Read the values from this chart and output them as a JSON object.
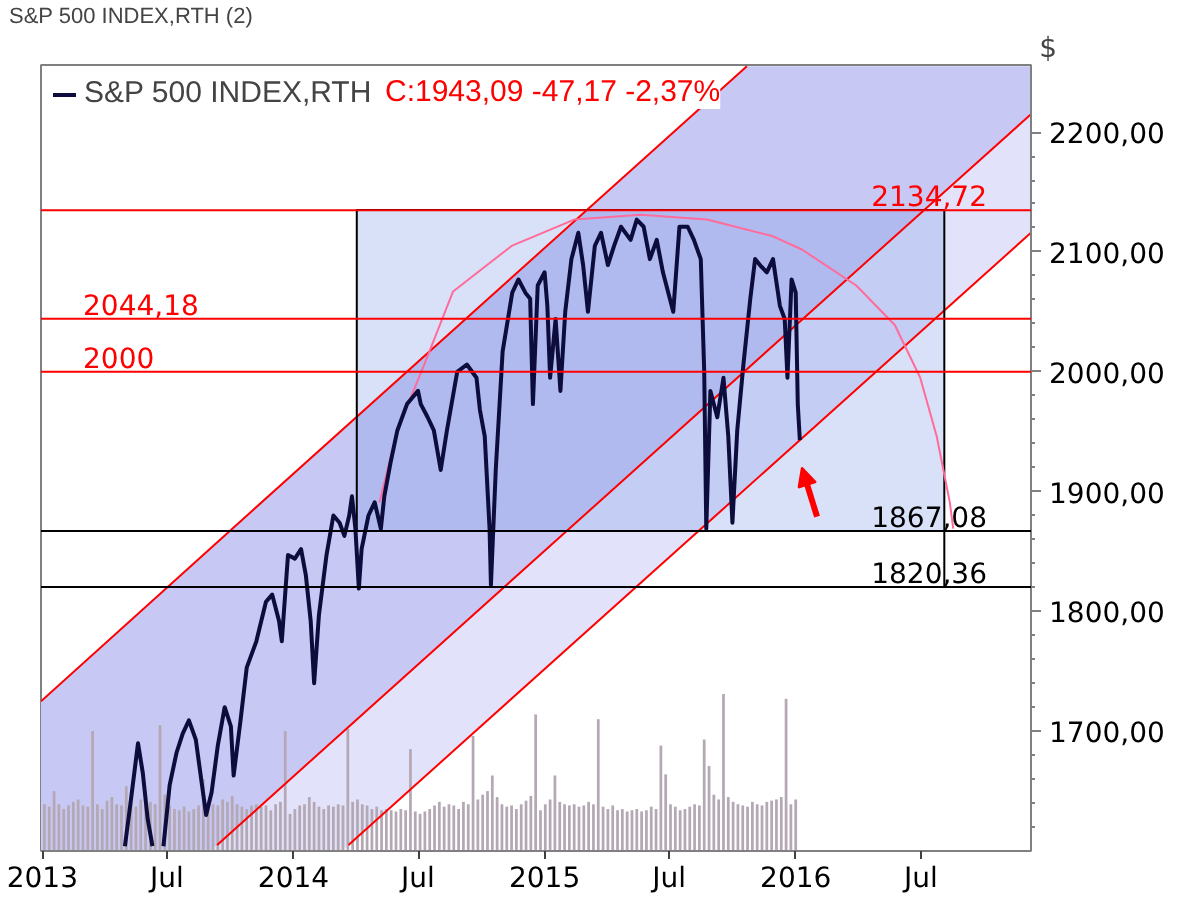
{
  "chart_data": {
    "type": "line",
    "title": "S&P 500 INDEX,RTH (2)",
    "ylabel": "$",
    "annotations": [
      "C:1943,09 -47,17 -2,37%"
    ],
    "legend": "top left",
    "xlim": [
      "2012-12-30",
      "2016-12-08"
    ],
    "xticks": [
      {
        "value": "2013-01-01",
        "label": "2013"
      },
      {
        "value": "2013-07-01",
        "label": "Jul"
      },
      {
        "value": "2014-01-01",
        "label": "2014"
      },
      {
        "value": "2014-07-01",
        "label": "Jul"
      },
      {
        "value": "2015-01-01",
        "label": "2015"
      },
      {
        "value": "2015-07-01",
        "label": "Jul"
      },
      {
        "value": "2016-01-01",
        "label": "2016"
      },
      {
        "value": "2016-07-01",
        "label": "Jul"
      }
    ],
    "ylim": [
      1600,
      2256
    ],
    "yticks": [
      {
        "value": 1620,
        "label": null
      },
      {
        "value": 1640,
        "label": null
      },
      {
        "value": 1660,
        "label": null
      },
      {
        "value": 1680,
        "label": null
      },
      {
        "value": 1700,
        "label": "1700,00"
      },
      {
        "value": 1720,
        "label": null
      },
      {
        "value": 1740,
        "label": null
      },
      {
        "value": 1760,
        "label": null
      },
      {
        "value": 1780,
        "label": null
      },
      {
        "value": 1800,
        "label": "1800,00"
      },
      {
        "value": 1820,
        "label": null
      },
      {
        "value": 1840,
        "label": null
      },
      {
        "value": 1860,
        "label": null
      },
      {
        "value": 1880,
        "label": null
      },
      {
        "value": 1900,
        "label": "1900,00"
      },
      {
        "value": 1920,
        "label": null
      },
      {
        "value": 1940,
        "label": null
      },
      {
        "value": 1960,
        "label": null
      },
      {
        "value": 1980,
        "label": null
      },
      {
        "value": 2000,
        "label": "2000,00"
      },
      {
        "value": 2020,
        "label": null
      },
      {
        "value": 2040,
        "label": null
      },
      {
        "value": 2060,
        "label": null
      },
      {
        "value": 2080,
        "label": null
      },
      {
        "value": 2100,
        "label": "2100,00"
      },
      {
        "value": 2120,
        "label": null
      },
      {
        "value": 2140,
        "label": null
      },
      {
        "value": 2160,
        "label": null
      },
      {
        "value": 2180,
        "label": null
      },
      {
        "value": 2200,
        "label": "2200,00"
      }
    ],
    "ref_lines": [
      {
        "axis": "y",
        "value": 2134.72,
        "label": "2134,72",
        "color": "#ff0000"
      },
      {
        "axis": "y",
        "value": 2044.18,
        "label": "2044,18",
        "color": "#ff0000"
      },
      {
        "axis": "y",
        "value": 2000,
        "label": "2000",
        "color": "#ff0000"
      },
      {
        "axis": "y",
        "value": 1867.08,
        "label": "1867,08",
        "color": "#000000"
      },
      {
        "axis": "y",
        "value": 1820.36,
        "label": "1820,36",
        "color": "#000000"
      }
    ],
    "series": [
      {
        "type": "bar",
        "color": "#b4a8b4",
        "x": [
          "2013-01-04",
          "2013-01-11",
          "2013-01-18",
          "2013-01-25",
          "2013-02-01",
          "2013-02-08",
          "2013-02-15",
          "2013-02-22",
          "2013-03-01",
          "2013-03-08",
          "2013-03-15",
          "2013-03-22",
          "2013-03-29",
          "2013-04-05",
          "2013-04-12",
          "2013-04-19",
          "2013-04-26",
          "2013-05-03",
          "2013-05-10",
          "2013-05-17",
          "2013-05-24",
          "2013-05-31",
          "2013-06-07",
          "2013-06-14",
          "2013-06-21",
          "2013-06-28",
          "2013-07-05",
          "2013-07-12",
          "2013-07-19",
          "2013-07-26",
          "2013-08-02",
          "2013-08-09",
          "2013-08-16",
          "2013-08-23",
          "2013-08-30",
          "2013-09-06",
          "2013-09-13",
          "2013-09-20",
          "2013-09-27",
          "2013-10-04",
          "2013-10-11",
          "2013-10-18",
          "2013-10-25",
          "2013-11-01",
          "2013-11-08",
          "2013-11-15",
          "2013-11-22",
          "2013-11-29",
          "2013-12-06",
          "2013-12-13",
          "2013-12-20",
          "2013-12-27",
          "2014-01-03",
          "2014-01-10",
          "2014-01-17",
          "2014-01-24",
          "2014-01-31",
          "2014-02-07",
          "2014-02-14",
          "2014-02-21",
          "2014-02-28",
          "2014-03-07",
          "2014-03-14",
          "2014-03-21",
          "2014-03-28",
          "2014-04-04",
          "2014-04-11",
          "2014-04-18",
          "2014-04-25",
          "2014-05-02",
          "2014-05-09",
          "2014-05-16",
          "2014-05-23",
          "2014-05-30",
          "2014-06-06",
          "2014-06-13",
          "2014-06-20",
          "2014-06-27",
          "2014-07-04",
          "2014-07-11",
          "2014-07-18",
          "2014-07-25",
          "2014-08-01",
          "2014-08-08",
          "2014-08-15",
          "2014-08-22",
          "2014-08-29",
          "2014-09-05",
          "2014-09-12",
          "2014-09-19",
          "2014-09-26",
          "2014-10-03",
          "2014-10-10",
          "2014-10-17",
          "2014-10-24",
          "2014-10-31",
          "2014-11-07",
          "2014-11-14",
          "2014-11-21",
          "2014-11-28",
          "2014-12-05",
          "2014-12-12",
          "2014-12-19",
          "2014-12-26",
          "2015-01-02",
          "2015-01-09",
          "2015-01-16",
          "2015-01-23",
          "2015-01-30",
          "2015-02-06",
          "2015-02-13",
          "2015-02-20",
          "2015-02-27",
          "2015-03-06",
          "2015-03-13",
          "2015-03-20",
          "2015-03-27",
          "2015-04-03",
          "2015-04-10",
          "2015-04-17",
          "2015-04-24",
          "2015-05-01",
          "2015-05-08",
          "2015-05-15",
          "2015-05-22",
          "2015-05-29",
          "2015-06-05",
          "2015-06-12",
          "2015-06-19",
          "2015-06-26",
          "2015-07-03",
          "2015-07-10",
          "2015-07-17",
          "2015-07-24",
          "2015-07-31",
          "2015-08-07",
          "2015-08-14",
          "2015-08-21",
          "2015-08-28",
          "2015-09-04",
          "2015-09-11",
          "2015-09-18",
          "2015-09-25",
          "2015-10-02",
          "2015-10-09",
          "2015-10-16",
          "2015-10-23",
          "2015-10-30",
          "2015-11-06",
          "2015-11-13",
          "2015-11-20",
          "2015-11-27",
          "2015-12-04",
          "2015-12-11",
          "2015-12-18",
          "2015-12-25",
          "2016-01-01"
        ],
        "base": [
          1600,
          1600,
          1600,
          1600,
          1600,
          1600,
          1600,
          1600,
          1600,
          1600,
          1600,
          1600,
          1600,
          1600,
          1600,
          1600,
          1600,
          1600,
          1600,
          1600,
          1600,
          1600,
          1600,
          1600,
          1600,
          1600,
          1600,
          1600,
          1600,
          1600,
          1600,
          1600,
          1600,
          1600,
          1600,
          1600,
          1600,
          1600,
          1600,
          1600,
          1600,
          1600,
          1600,
          1600,
          1600,
          1600,
          1600,
          1600,
          1600,
          1600,
          1600,
          1600,
          1600,
          1600,
          1600,
          1600,
          1600,
          1600,
          1600,
          1600,
          1600,
          1600,
          1600,
          1600,
          1600,
          1600,
          1600,
          1600,
          1600,
          1600,
          1600,
          1600,
          1600,
          1600,
          1600,
          1600,
          1600,
          1600,
          1600,
          1600,
          1600,
          1600,
          1600,
          1600,
          1600,
          1600,
          1600,
          1600,
          1600,
          1600,
          1600,
          1600,
          1600,
          1600,
          1600,
          1600,
          1600,
          1600,
          1600,
          1600,
          1600,
          1600,
          1600,
          1600,
          1600,
          1600,
          1600,
          1600,
          1600,
          1600,
          1600,
          1600,
          1600,
          1600,
          1600,
          1600,
          1600,
          1600,
          1600,
          1600,
          1600,
          1600,
          1600,
          1600,
          1600,
          1600,
          1600,
          1600,
          1600,
          1600,
          1600,
          1600,
          1600,
          1600,
          1600,
          1600,
          1600,
          1600,
          1600,
          1600,
          1600,
          1600,
          1600,
          1600,
          1600,
          1600,
          1600,
          1600,
          1600,
          1600,
          1600,
          1600,
          1600,
          1600,
          1600,
          1600,
          1600
        ],
        "values": [
          39,
          37,
          50,
          39,
          35,
          38,
          41,
          43,
          38,
          37,
          100,
          39,
          35,
          42,
          45,
          39,
          38,
          54,
          41,
          37,
          43,
          38,
          41,
          39,
          105,
          47,
          38,
          35,
          34,
          37,
          33,
          35,
          38,
          60,
          37,
          39,
          38,
          43,
          41,
          46,
          39,
          37,
          35,
          38,
          39,
          37,
          38,
          34,
          39,
          41,
          100,
          31,
          35,
          38,
          39,
          45,
          41,
          37,
          35,
          38,
          37,
          39,
          38,
          102,
          41,
          43,
          39,
          38,
          35,
          37,
          34,
          35,
          34,
          33,
          35,
          34,
          85,
          33,
          31,
          33,
          35,
          38,
          41,
          37,
          39,
          38,
          35,
          41,
          39,
          96,
          43,
          47,
          50,
          63,
          45,
          39,
          37,
          38,
          35,
          39,
          42,
          46,
          114,
          34,
          39,
          43,
          63,
          41,
          39,
          38,
          39,
          37,
          38,
          41,
          39,
          110,
          37,
          35,
          38,
          34,
          35,
          33,
          34,
          35,
          33,
          34,
          37,
          35,
          88,
          64,
          39,
          37,
          34,
          35,
          37,
          39,
          38,
          93,
          71,
          47,
          43,
          131,
          45,
          41,
          39,
          38,
          37,
          41,
          39,
          38,
          41,
          42,
          43,
          45,
          127,
          39,
          43
        ]
      },
      {
        "type": "line",
        "color": "#ff0000",
        "x": [
          "2012-12-30",
          "2013-09-05",
          "2015-10-22",
          "2016-12-08"
        ],
        "values": [
          1725,
          1854,
          2255,
          null
        ],
        "lower": [
          1600,
          1601,
          2002,
          2215
        ],
        "upper": [
          1725,
          1854,
          2255,
          2255
        ]
      },
      {
        "type": "line",
        "color": "#ff0000",
        "x": [
          "2013-09-05",
          "2013-09-12",
          "2014-03-15",
          "2016-12-08"
        ],
        "values": [
          null,
          1605,
          1700,
          2215
        ],
        "lower": [
          1600,
          1600,
          1601,
          2116
        ],
        "upper": [
          1601,
          1605,
          1700,
          2215
        ]
      },
      {
        "type": "line",
        "color": "#ff0000",
        "x": [
          "2014-03-22",
          "2016-12-08"
        ],
        "values": [
          1605,
          2116
        ]
      },
      {
        "type": "line",
        "color": "#000000",
        "x": [
          "2014-04-03",
          "2014-04-03",
          "2016-08-04",
          "2016-08-04"
        ],
        "values": [
          1867,
          2135,
          2135,
          1820
        ],
        "lower": [
          1867,
          1867,
          1867,
          1867
        ],
        "upper": [
          2135,
          2135,
          2135,
          2135
        ]
      },
      {
        "type": "line",
        "color": "#ff6b9a",
        "x": [
          "2014-05-06",
          "2014-06-01",
          "2014-07-10",
          "2014-08-21",
          "2014-11-14",
          "2015-02-13",
          "2015-05-21",
          "2015-08-25",
          "2015-11-29",
          "2016-01-10",
          "2016-03-29",
          "2016-05-24",
          "2016-06-30",
          "2016-07-24",
          "2016-08-12",
          "2016-08-17"
        ],
        "values": [
          1891,
          1951,
          2006,
          2067,
          2105,
          2127,
          2131,
          2127,
          2113,
          2102,
          2072,
          2039,
          1995,
          1946,
          1891,
          1869
        ]
      },
      {
        "name": "S&P 500 INDEX,RTH",
        "color": "#0d0d3d",
        "x": [
          "2013-05-01",
          "2013-05-10",
          "2013-05-20",
          "2013-05-27",
          "2013-06-03",
          "2013-06-10",
          "2013-06-18",
          "2013-06-26",
          "2013-07-05",
          "2013-07-15",
          "2013-07-24",
          "2013-08-02",
          "2013-08-12",
          "2013-08-21",
          "2013-08-27",
          "2013-09-04",
          "2013-09-13",
          "2013-09-23",
          "2013-10-02",
          "2013-10-06",
          "2013-10-16",
          "2013-10-25",
          "2013-11-08",
          "2013-11-22",
          "2013-12-01",
          "2013-12-11",
          "2013-12-15",
          "2013-12-24",
          "2014-01-03",
          "2014-01-12",
          "2014-01-19",
          "2014-01-26",
          "2014-01-31",
          "2014-02-07",
          "2014-02-18",
          "2014-02-28",
          "2014-03-09",
          "2014-03-16",
          "2014-03-23",
          "2014-03-27",
          "2014-04-01",
          "2014-04-06",
          "2014-04-10",
          "2014-04-20",
          "2014-04-29",
          "2014-05-08",
          "2014-05-13",
          "2014-05-22",
          "2014-06-01",
          "2014-06-15",
          "2014-07-01",
          "2014-07-05",
          "2014-07-15",
          "2014-07-24",
          "2014-08-03",
          "2014-08-12",
          "2014-08-27",
          "2014-09-10",
          "2014-09-24",
          "2014-09-29",
          "2014-10-06",
          "2014-10-13",
          "2014-10-15",
          "2014-10-22",
          "2014-11-01",
          "2014-11-15",
          "2014-11-24",
          "2014-12-04",
          "2014-12-11",
          "2014-12-15",
          "2014-12-22",
          "2015-01-01",
          "2015-01-05",
          "2015-01-09",
          "2015-01-17",
          "2015-01-24",
          "2015-01-31",
          "2015-02-09",
          "2015-02-19",
          "2015-02-26",
          "2015-03-05",
          "2015-03-15",
          "2015-03-24",
          "2015-04-03",
          "2015-04-12",
          "2015-04-22",
          "2015-05-06",
          "2015-05-15",
          "2015-05-25",
          "2015-06-03",
          "2015-06-13",
          "2015-06-22",
          "2015-07-07",
          "2015-07-16",
          "2015-07-28",
          "2015-08-06",
          "2015-08-16",
          "2015-08-21",
          "2015-08-24",
          "2015-08-30",
          "2015-09-09",
          "2015-09-18",
          "2015-09-25",
          "2015-10-01",
          "2015-10-08",
          "2015-10-17",
          "2015-10-27",
          "2015-11-03",
          "2015-11-10",
          "2015-11-20",
          "2015-11-29",
          "2015-12-09",
          "2015-12-16",
          "2015-12-20",
          "2015-12-26",
          "2016-01-01",
          "2016-01-04",
          "2016-01-07"
        ],
        "values": [
          1604,
          1644,
          1690,
          1665,
          1627,
          1604,
          null,
          1604,
          1655,
          1682,
          1698,
          1709,
          1693,
          1655,
          1630,
          1649,
          1688,
          1720,
          1704,
          1663,
          1709,
          1753,
          1775,
          1808,
          1814,
          1792,
          1775,
          1847,
          1844,
          1852,
          1830,
          1792,
          1740,
          1797,
          1847,
          1880,
          1874,
          1863,
          1880,
          1896,
          1869,
          1819,
          1852,
          1880,
          1891,
          1869,
          1896,
          1924,
          1951,
          1973,
          1984,
          1973,
          1962,
          1951,
          1918,
          1951,
          2000,
          2006,
          1995,
          1968,
          1946,
          1869,
          1822,
          1918,
          2017,
          2066,
          2077,
          2066,
          2061,
          1973,
          2072,
          2083,
          2055,
          1995,
          2044,
          1984,
          2050,
          2094,
          2116,
          2089,
          2050,
          2105,
          2116,
          2089,
          2105,
          2121,
          2110,
          2127,
          2121,
          2094,
          2110,
          2083,
          2050,
          2121,
          2121,
          2110,
          2094,
          2000,
          1869,
          1984,
          1962,
          1995,
          1946,
          1874,
          1951,
          2006,
          2061,
          2094,
          2089,
          2083,
          2094,
          2055,
          2044,
          1995,
          2077,
          2066,
          1973,
          1943
        ]
      }
    ]
  }
}
